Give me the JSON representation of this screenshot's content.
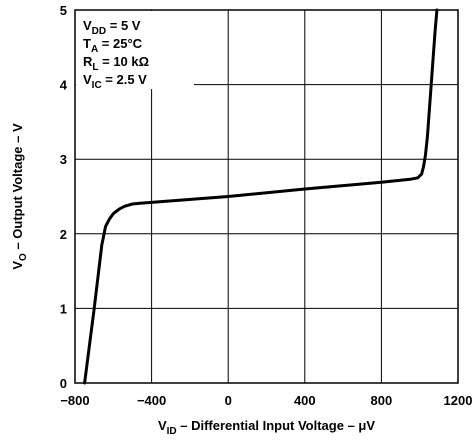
{
  "chart_data": {
    "type": "line",
    "title": "",
    "xlabel": {
      "main": "V",
      "sub": "ID",
      "rest": " – Differential Input Voltage – μV"
    },
    "ylabel": {
      "main": "V",
      "sub": "O",
      "rest": " – Output Voltage – V"
    },
    "xlim": [
      -800,
      1200
    ],
    "ylim": [
      0,
      5
    ],
    "xticks": [
      "−800",
      "−400",
      "0",
      "400",
      "800",
      "1200"
    ],
    "xtick_values": [
      -800,
      -400,
      0,
      400,
      800,
      1200
    ],
    "yticks": [
      "0",
      "1",
      "2",
      "3",
      "4",
      "5"
    ],
    "ytick_values": [
      0,
      1,
      2,
      3,
      4,
      5
    ],
    "grid": true,
    "conditions": [
      {
        "main": "V",
        "sub": "DD",
        "rest": " = 5 V"
      },
      {
        "main": "T",
        "sub": "A",
        "rest": " = 25°C"
      },
      {
        "main": "R",
        "sub": "L",
        "rest": " = 10 kΩ"
      },
      {
        "main": "V",
        "sub": "IC",
        "rest": " = 2.5 V"
      }
    ],
    "series": [
      {
        "x": [
          -750,
          -700,
          -660,
          -640,
          -620,
          -600,
          -570,
          -540,
          -500,
          -460,
          0,
          400,
          800,
          950,
          990,
          1010,
          1020,
          1030,
          1040,
          1050,
          1060,
          1070,
          1080,
          1090
        ],
        "y": [
          0,
          1.0,
          1.85,
          2.1,
          2.2,
          2.27,
          2.33,
          2.37,
          2.4,
          2.41,
          2.5,
          2.6,
          2.69,
          2.73,
          2.75,
          2.8,
          2.9,
          3.05,
          3.3,
          3.65,
          4.0,
          4.35,
          4.7,
          5.0
        ]
      }
    ]
  }
}
